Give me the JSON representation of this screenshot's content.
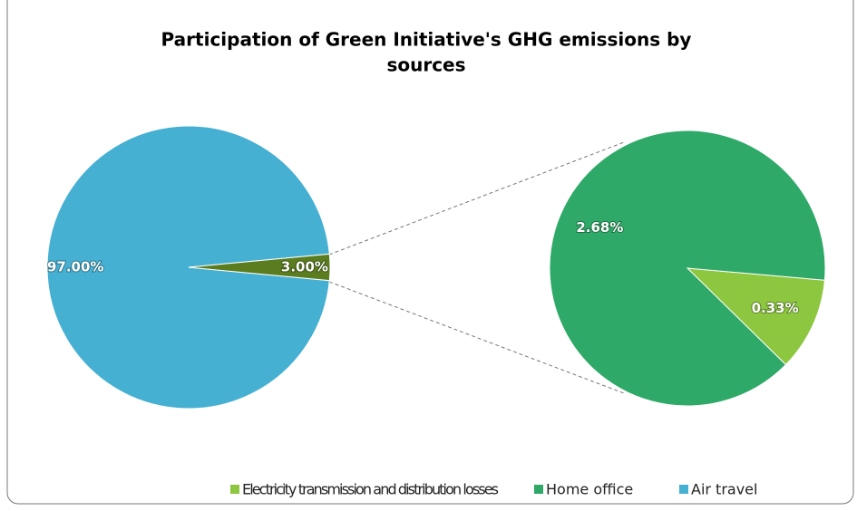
{
  "chart_data": {
    "type": "pie",
    "title": [
      "Participation of Green Initiative's GHG emissions by",
      "sources"
    ],
    "categories": [
      "Electricity transmission and distribution losses",
      "Home office",
      "Air travel"
    ],
    "values": [
      0.33,
      2.68,
      97.0
    ],
    "value_labels": [
      "0.33%",
      "2.68%",
      "97.00%"
    ],
    "colors": [
      "#8dc63f",
      "#2fa968",
      "#45b0d2"
    ],
    "other_value": 3.0,
    "other_label": "3.00%",
    "other_color": "#5b7d1f"
  }
}
